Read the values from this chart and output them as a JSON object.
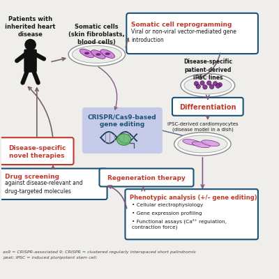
{
  "bg_color": "#f0eeeb",
  "title_color": "#c0392b",
  "box_border_dark": "#1a5276",
  "text_dark": "#1a1a1a",
  "arrow_purple": "#7d5c7d",
  "crispr_bg": "#c5cae9",
  "somatic_box_title": "Somatic cell reprogramming",
  "somatic_box_body": "Viral or non-viral vector-mediated gene\nintroduction",
  "differentiation_label": "Differentiation",
  "crispr_label": "CRISPR/Cas9-based\ngene editing",
  "ipsc_lines_label": "Disease-specific\npatient-derived\niPSC lines",
  "ipsc_cardio_label": "iPSC-derived cardiomyocytes\n(disease model in a dish)",
  "regen_label": "Regeneration therapy",
  "phenotypic_title": "Phenotypic analysis (+/– gene editing)",
  "phenotypic_b1": "Cellular electrophysiology",
  "phenotypic_b2": "Gene expression profiling",
  "phenotypic_b3": "Functional assays (Ca²⁺ regulation,\ncontraction force)",
  "disease_therapies_label": "Disease-specific\nnovel therapies",
  "drug_screening_title": "Drug screening",
  "drug_screening_body": "against disease-relevant and\ndrug-targeted molecules",
  "patient_label": "Patients with\ninherited heart\ndisease",
  "somatic_cells_label": "Somatic cells\n(skin fibroblasts,\nblood cells)",
  "footnote1": "as9 = CRISPR-associated 9; CRISPR = clustered regularly interspaced short palindromic",
  "footnote2": "peat; iPSC = induced pluripotent stem cell."
}
